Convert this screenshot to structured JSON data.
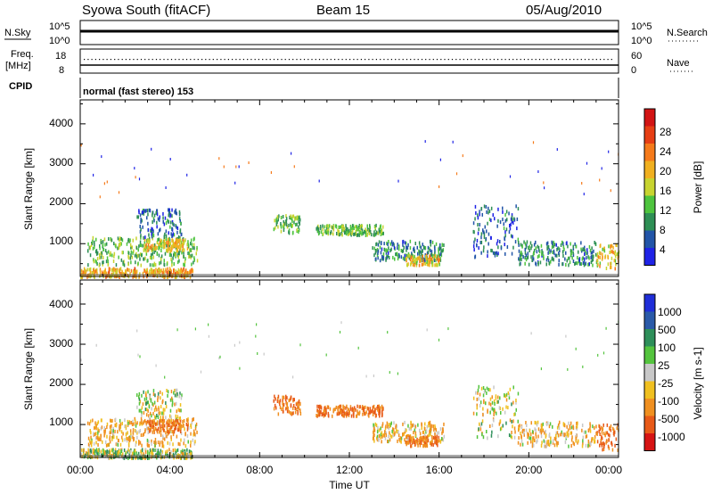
{
  "header": {
    "station": "Syowa South (fitACF)",
    "beam": "Beam 15",
    "date": "05/Aug/2010"
  },
  "top_panel": {
    "left_label": "N.Sky",
    "right_label": "N.Search",
    "ticks": [
      "10^5",
      "10^0"
    ]
  },
  "freq_panel": {
    "left_label_line1": "Freq.",
    "left_label_line2": "[MHz]",
    "right_label": "Nave",
    "left_ticks": [
      "18",
      "8"
    ],
    "right_ticks": [
      "60",
      "0"
    ]
  },
  "cpid": {
    "label": "CPID",
    "value": "normal (fast stereo) 153"
  },
  "x_axis": {
    "label": "Time UT",
    "tick_labels": [
      "00:00",
      "04:00",
      "08:00",
      "12:00",
      "16:00",
      "20:00",
      "00:00"
    ],
    "range_hours": [
      0,
      24
    ]
  },
  "power_panel": {
    "ylabel": "Slant Range [km]",
    "y_ticks": [
      "4000",
      "3000",
      "2000",
      "1000"
    ],
    "colorbar_label": "Power [dB]",
    "colorbar_ticks": [
      "28",
      "24",
      "20",
      "16",
      "12",
      "8",
      "4"
    ],
    "colors": [
      "#1f23e6",
      "#2255a8",
      "#2e8f55",
      "#4ec43e",
      "#c8d430",
      "#f0b020",
      "#f57a1a",
      "#e63e14",
      "#d21414"
    ]
  },
  "velocity_panel": {
    "ylabel": "Slant Range [km]",
    "y_ticks": [
      "4000",
      "3000",
      "2000",
      "1000"
    ],
    "colorbar_label": "Velocity [m s-1]",
    "colorbar_ticks": [
      "1000",
      "500",
      "100",
      "25",
      "-25",
      "-100",
      "-500",
      "-1000"
    ],
    "colors": [
      "#1f2ed8",
      "#2a5aa8",
      "#2e8f5a",
      "#54c43e",
      "#c8c8c8",
      "#f0c020",
      "#f09020",
      "#e85a18",
      "#d61414"
    ]
  },
  "chart_data": {
    "type": "heatmap",
    "x_unit": "hours UT",
    "y_unit": "km",
    "x_range": [
      0,
      24
    ],
    "y_range": [
      180,
      4600
    ],
    "power_clusters": [
      {
        "t0": 0.0,
        "t1": 5.0,
        "r0": 200,
        "r1": 420,
        "v": 22
      },
      {
        "t0": 0.3,
        "t1": 5.2,
        "r0": 500,
        "r1": 1200,
        "v": 14
      },
      {
        "t0": 2.8,
        "t1": 4.8,
        "r0": 850,
        "r1": 1150,
        "v": 20
      },
      {
        "t0": 2.5,
        "t1": 4.5,
        "r0": 1200,
        "r1": 1900,
        "v": 8
      },
      {
        "t0": 8.6,
        "t1": 9.8,
        "r0": 1300,
        "r1": 1750,
        "v": 14
      },
      {
        "t0": 10.5,
        "t1": 13.5,
        "r0": 1250,
        "r1": 1500,
        "v": 14
      },
      {
        "t0": 13.0,
        "t1": 16.2,
        "r0": 600,
        "r1": 1100,
        "v": 10
      },
      {
        "t0": 14.5,
        "t1": 16.0,
        "r0": 500,
        "r1": 750,
        "v": 20
      },
      {
        "t0": 17.5,
        "t1": 19.5,
        "r0": 700,
        "r1": 2000,
        "v": 8
      },
      {
        "t0": 19.5,
        "t1": 23.0,
        "r0": 500,
        "r1": 1100,
        "v": 10
      },
      {
        "t0": 23.0,
        "t1": 24.0,
        "r0": 400,
        "r1": 1050,
        "v": 20
      }
    ],
    "velocity_clusters": [
      {
        "t0": 0.0,
        "t1": 5.0,
        "r0": 200,
        "r1": 420,
        "v": 25
      },
      {
        "t0": 0.3,
        "t1": 5.2,
        "r0": 500,
        "r1": 1200,
        "v": -100
      },
      {
        "t0": 2.8,
        "t1": 4.8,
        "r0": 850,
        "r1": 1150,
        "v": -500
      },
      {
        "t0": 2.5,
        "t1": 4.5,
        "r0": 1200,
        "r1": 1900,
        "v": -25
      },
      {
        "t0": 8.6,
        "t1": 9.8,
        "r0": 1300,
        "r1": 1750,
        "v": -500
      },
      {
        "t0": 10.5,
        "t1": 13.5,
        "r0": 1250,
        "r1": 1500,
        "v": -500
      },
      {
        "t0": 13.0,
        "t1": 16.2,
        "r0": 600,
        "r1": 1100,
        "v": -100
      },
      {
        "t0": 14.5,
        "t1": 16.0,
        "r0": 500,
        "r1": 750,
        "v": -500
      },
      {
        "t0": 17.5,
        "t1": 19.5,
        "r0": 700,
        "r1": 2000,
        "v": -25
      },
      {
        "t0": 19.5,
        "t1": 23.0,
        "r0": 500,
        "r1": 1100,
        "v": -100
      },
      {
        "t0": 23.0,
        "t1": 24.0,
        "r0": 400,
        "r1": 1050,
        "v": -500
      }
    ],
    "freq_mhz": 10.5,
    "nave_scatter": 40
  }
}
